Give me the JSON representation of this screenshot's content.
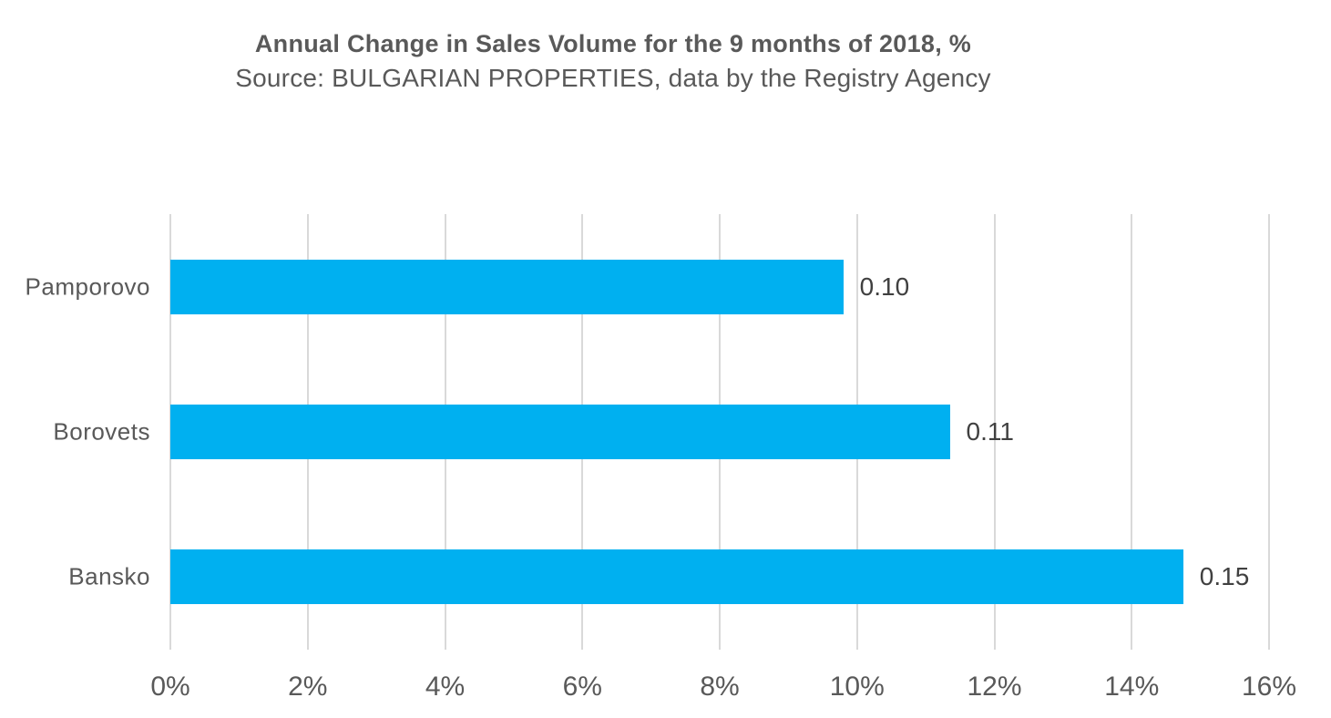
{
  "header": {
    "title": "Annual Change in Sales Volume for the 9 months of 2018, %",
    "subtitle": "Source: BULGARIAN PROPERTIES, data by the Registry Agency"
  },
  "chart_data": {
    "type": "bar",
    "orientation": "horizontal",
    "title": "Annual Change in Sales Volume for the 9 months of 2018, %",
    "source_note": "Source: BULGARIAN PROPERTIES, data by the Registry Agency",
    "categories": [
      "Pamporovo",
      "Borovets",
      "Bansko"
    ],
    "values": [
      0.1,
      0.11,
      0.15
    ],
    "value_labels": [
      "0.10",
      "0.11",
      "0.15"
    ],
    "bar_lengths_percent": [
      9.8,
      11.35,
      14.75
    ],
    "xlabel": "",
    "ylabel": "",
    "xlim": [
      0,
      16
    ],
    "x_ticks": [
      "0%",
      "2%",
      "4%",
      "6%",
      "8%",
      "10%",
      "12%",
      "14%",
      "16%"
    ],
    "grid": "vertical-only",
    "legend": "none",
    "colors": {
      "bar": "#00B0F0",
      "gridline": "#d9d9d9",
      "axis_text": "#595959",
      "title_text": "#595959",
      "value_label_text": "#404040",
      "background": "#ffffff"
    }
  }
}
